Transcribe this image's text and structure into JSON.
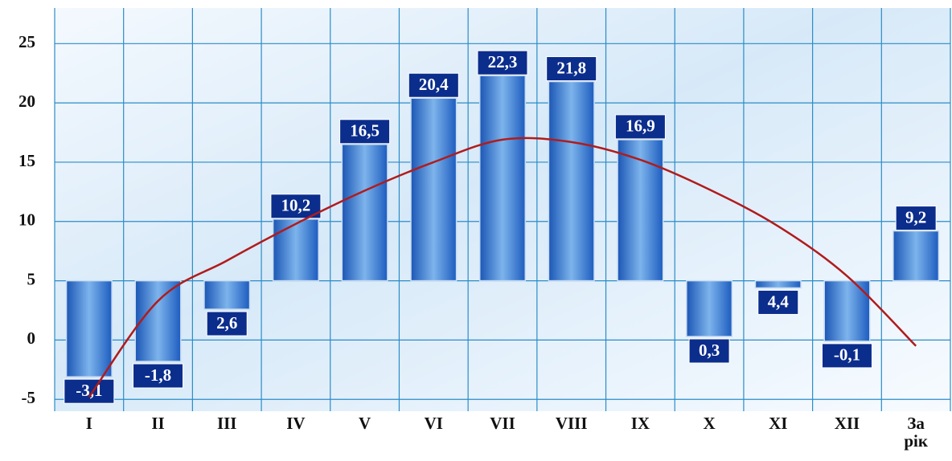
{
  "chart_data": {
    "type": "bar",
    "categories": [
      "I",
      "II",
      "III",
      "IV",
      "V",
      "VI",
      "VII",
      "VIII",
      "IX",
      "X",
      "XI",
      "XII",
      "За рік"
    ],
    "values": [
      -3.1,
      -1.8,
      2.6,
      10.2,
      16.5,
      20.4,
      22.3,
      21.8,
      16.9,
      0.3,
      4.4,
      -0.1,
      9.2
    ],
    "value_labels": [
      "-3,1",
      "-1,8",
      "2,6",
      "10,2",
      "16,5",
      "20,4",
      "22,3",
      "21,8",
      "16,9",
      "0,3",
      "4,4",
      "-0,1",
      "9,2"
    ],
    "base": 5,
    "color": "#2a6fd0",
    "trend": {
      "color": "#b01c1c",
      "values": [
        -4.8,
        3.3,
        6.7,
        9.8,
        12.6,
        15,
        16.9,
        16.7,
        15.2,
        12.7,
        9.6,
        5.4,
        -0.5
      ]
    },
    "ylim": [
      -6,
      28
    ],
    "yticks": [
      -5,
      0,
      5,
      10,
      15,
      20,
      25
    ],
    "grid": true
  }
}
